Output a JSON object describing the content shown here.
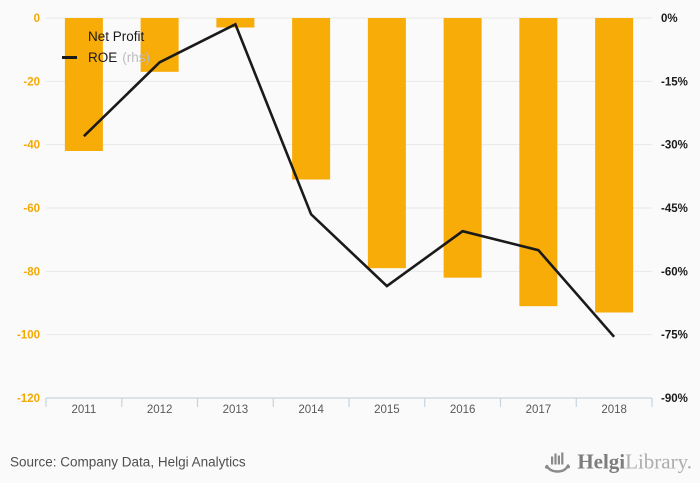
{
  "chart": {
    "legend": [
      {
        "label": "Net Profit",
        "note": "",
        "marker": "square",
        "color": "#F8AC08"
      },
      {
        "label": "ROE",
        "note": "(rhs)",
        "marker": "line",
        "color": "#1a1a1a"
      }
    ],
    "source": "Source: Company Data, Helgi Analytics",
    "logo": {
      "text_bold": "Helgi",
      "text_light": "Library."
    }
  },
  "chart_data": {
    "type": "bar",
    "title": "",
    "categories": [
      "2011",
      "2012",
      "2013",
      "2014",
      "2015",
      "2016",
      "2017",
      "2018"
    ],
    "series": [
      {
        "name": "Net Profit",
        "type": "bar",
        "axis": "left",
        "color": "#F8AC08",
        "values": [
          -42,
          -17,
          -3,
          -51,
          -79,
          -82,
          -91,
          -93
        ]
      },
      {
        "name": "ROE (rhs)",
        "type": "line",
        "axis": "right",
        "color": "#1a1a1a",
        "values": [
          -28,
          -10.5,
          -1.5,
          -46.5,
          -63.5,
          -50.5,
          -55,
          -75.5
        ]
      }
    ],
    "left_axis": {
      "min": -120,
      "max": 0,
      "tick_step": 20,
      "tick_labels": [
        "0",
        "-20",
        "-40",
        "-60",
        "-80",
        "-100",
        "-120"
      ],
      "color": "#F5A800"
    },
    "right_axis": {
      "min": -90,
      "max": 0,
      "tick_step": 15,
      "tick_labels": [
        "0%",
        "-15%",
        "-30%",
        "-45%",
        "-60%",
        "-75%",
        "-90%"
      ],
      "color": "#1a1a1a"
    },
    "x_axis": {
      "label_color": "#595959",
      "line_color": "#c9d3de"
    },
    "grid": "horizontal",
    "grid_color": "#e8e8e8",
    "legend_position": "top-left-inside"
  }
}
